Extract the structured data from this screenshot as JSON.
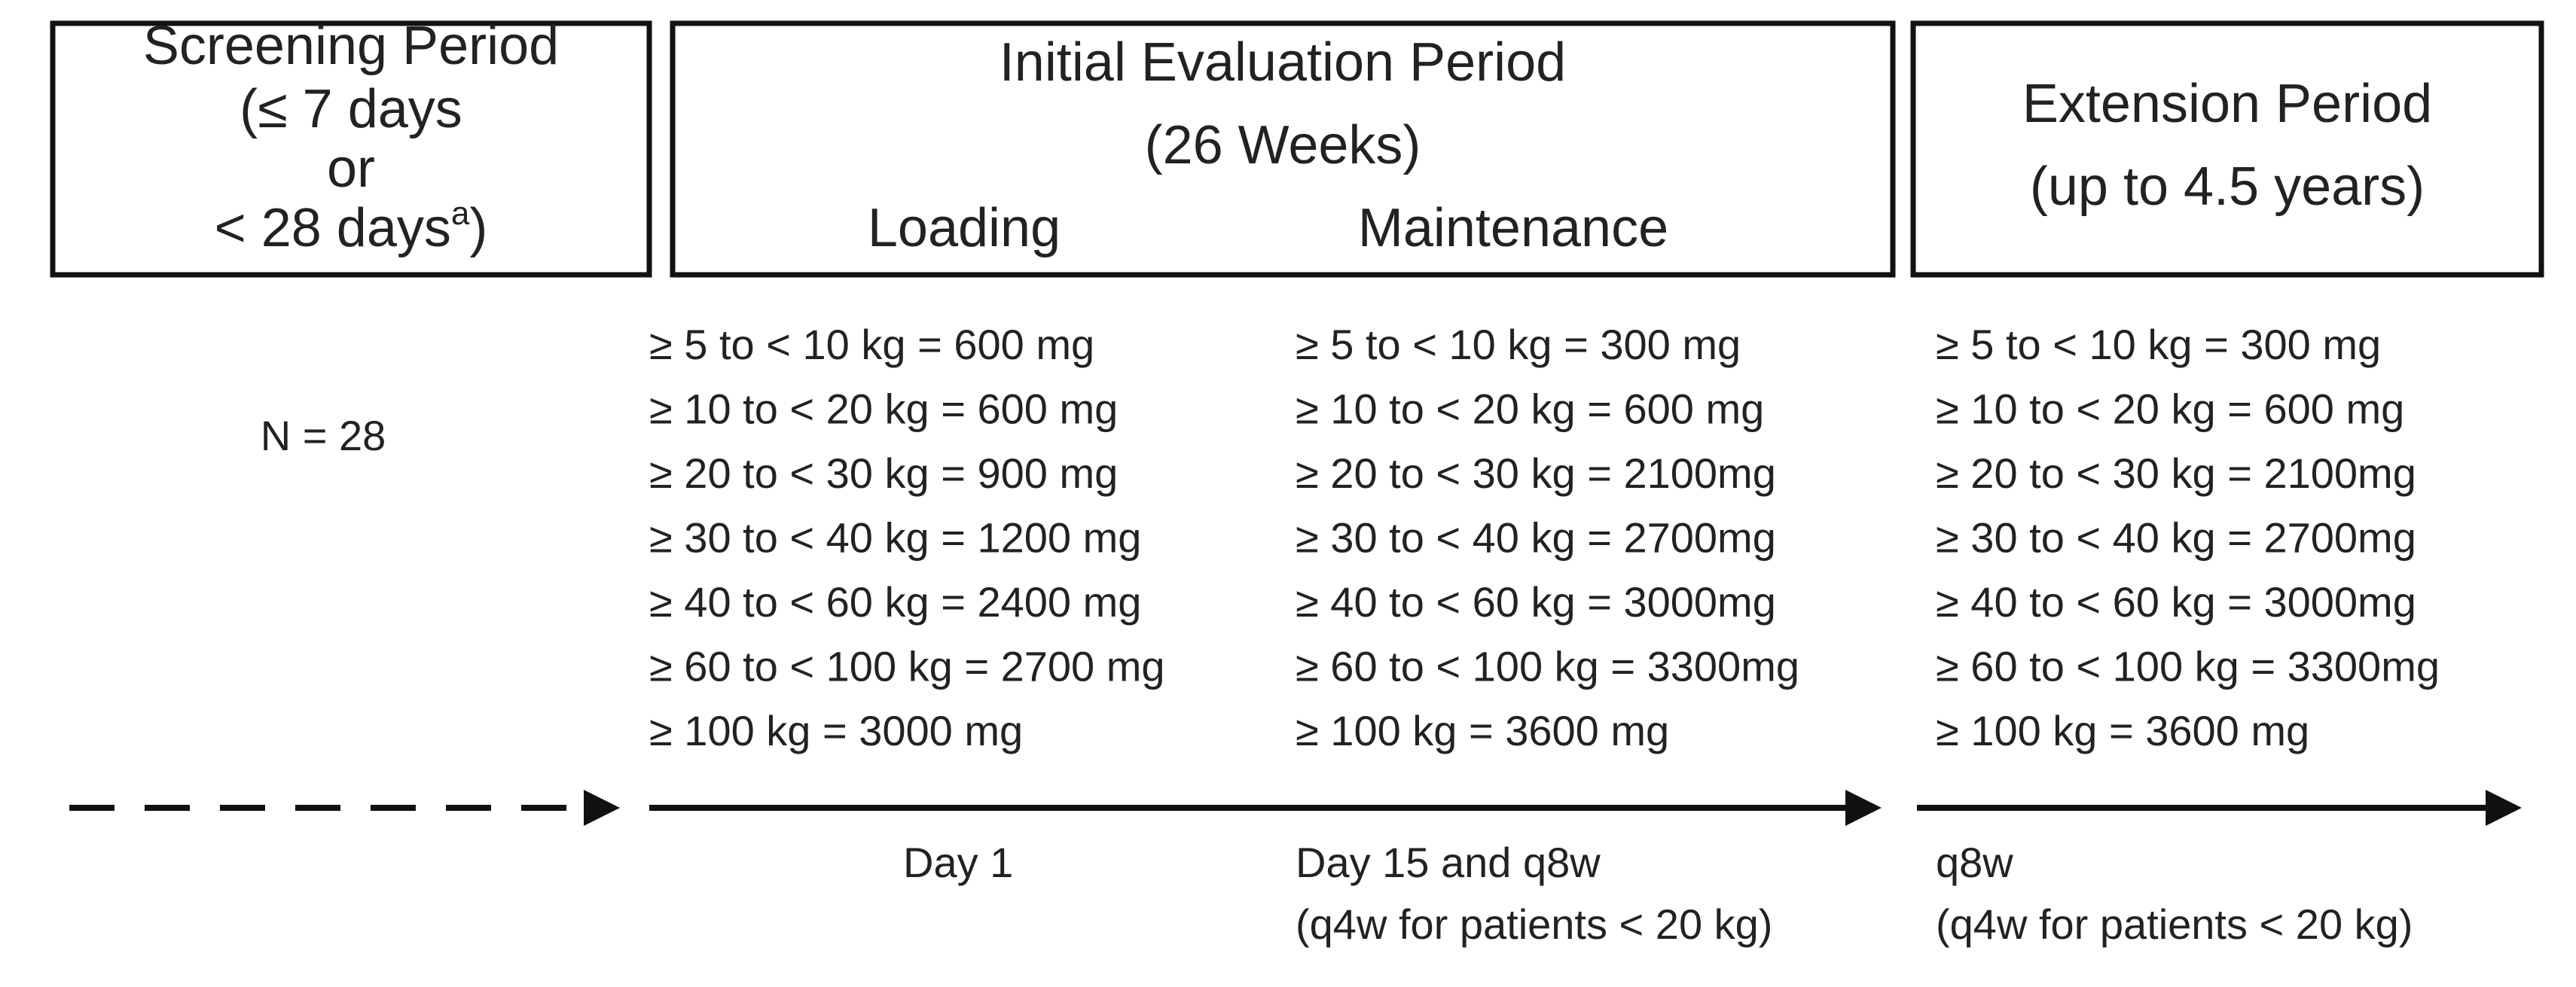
{
  "screening": {
    "lines": [
      "Screening Period",
      "(≤ 7 days",
      "or",
      "< 28 days"
    ],
    "footnote": "a",
    "suffix": ")",
    "n": "N = 28"
  },
  "initial": {
    "title": "Initial Evaluation Period",
    "subtitle": "(26 Weeks)",
    "phases": [
      "Loading",
      "Maintenance"
    ]
  },
  "extension": {
    "title": "Extension Period",
    "subtitle": "(up to 4.5 years)"
  },
  "columns": [
    {
      "doses": [
        "≥ 5 to < 10 kg = 600 mg",
        "≥ 10 to < 20 kg = 600 mg",
        "≥ 20 to < 30 kg = 900 mg",
        "≥ 30 to < 40 kg = 1200 mg",
        "≥ 40 to < 60 kg = 2400 mg",
        "≥ 60  to < 100 kg = 2700 mg",
        "≥ 100 kg = 3000 mg"
      ],
      "schedule": [
        "Day 1"
      ]
    },
    {
      "doses": [
        "≥ 5 to < 10 kg = 300 mg",
        "≥ 10 to < 20 kg = 600 mg",
        "≥ 20 to < 30 kg = 2100mg",
        "≥ 30 to < 40 kg = 2700mg",
        "≥ 40 to < 60 kg = 3000mg",
        "≥ 60 to < 100 kg = 3300mg",
        "≥ 100 kg = 3600 mg"
      ],
      "schedule": [
        "Day 15 and q8w",
        "(q4w for patients < 20 kg)"
      ]
    },
    {
      "doses": [
        "≥ 5 to < 10 kg = 300 mg",
        "≥ 10 to < 20 kg = 600 mg",
        "≥ 20 to < 30 kg = 2100mg",
        "≥ 30 to < 40 kg = 2700mg",
        "≥ 40 to < 60 kg = 3000mg",
        "≥ 60 to < 100 kg = 3300mg",
        "≥ 100 kg = 3600 mg"
      ],
      "schedule": [
        "q8w",
        "(q4w for patients < 20 kg)"
      ]
    }
  ]
}
